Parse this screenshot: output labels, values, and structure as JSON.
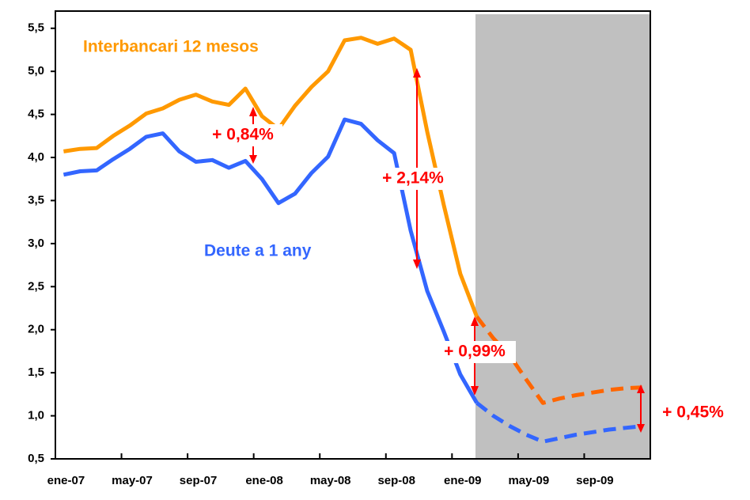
{
  "chart_data": {
    "type": "line",
    "categories": [
      "ene-07",
      null,
      null,
      null,
      "may-07",
      null,
      null,
      null,
      "sep-07",
      null,
      null,
      null,
      "ene-08",
      null,
      null,
      null,
      "may-08",
      null,
      null,
      null,
      "sep-08",
      null,
      null,
      null,
      "ene-09",
      null,
      null,
      null,
      "may-09",
      null,
      null,
      null,
      "sep-09",
      null,
      null,
      null
    ],
    "series": [
      {
        "name": "Interbancari 12 mesos",
        "color": "#ff9900",
        "dashed": false,
        "values": [
          4.07,
          4.1,
          4.11,
          4.25,
          4.37,
          4.51,
          4.57,
          4.67,
          4.73,
          4.65,
          4.61,
          4.8,
          4.48,
          4.33,
          4.6,
          4.82,
          5.0,
          5.36,
          5.39,
          5.32,
          5.38,
          5.25,
          4.3,
          3.45,
          2.65,
          2.15,
          null,
          null,
          null,
          null,
          null,
          null,
          null,
          null,
          null,
          null
        ]
      },
      {
        "name": "Deute a 1 any",
        "color": "#3366ff",
        "dashed": false,
        "values": [
          3.8,
          3.84,
          3.85,
          3.98,
          4.1,
          4.24,
          4.28,
          4.07,
          3.95,
          3.97,
          3.88,
          3.96,
          3.75,
          3.47,
          3.58,
          3.82,
          4.01,
          4.44,
          4.39,
          4.2,
          4.05,
          3.15,
          2.45,
          1.98,
          1.48,
          1.15,
          null,
          null,
          null,
          null,
          null,
          null,
          null,
          null,
          null,
          null
        ]
      },
      {
        "color": "#ff6600",
        "dashed": true,
        "values": [
          null,
          null,
          null,
          null,
          null,
          null,
          null,
          null,
          null,
          null,
          null,
          null,
          null,
          null,
          null,
          null,
          null,
          null,
          null,
          null,
          null,
          null,
          null,
          null,
          null,
          2.15,
          1.9,
          1.7,
          1.42,
          1.15,
          1.2,
          1.24,
          1.27,
          1.3,
          1.32,
          1.33
        ]
      },
      {
        "color": "#3366ff",
        "dashed": true,
        "values": [
          null,
          null,
          null,
          null,
          null,
          null,
          null,
          null,
          null,
          null,
          null,
          null,
          null,
          null,
          null,
          null,
          null,
          null,
          null,
          null,
          null,
          null,
          null,
          null,
          null,
          1.15,
          1.0,
          0.88,
          0.78,
          0.7,
          0.74,
          0.78,
          0.81,
          0.84,
          0.86,
          0.88
        ]
      }
    ],
    "ylim": [
      0.5,
      5.7
    ],
    "yticks": [
      {
        "value": 0.5,
        "label": "0,5"
      },
      {
        "value": 1.0,
        "label": "1,0"
      },
      {
        "value": 1.5,
        "label": "1,5"
      },
      {
        "value": 2.0,
        "label": "2,0"
      },
      {
        "value": 2.5,
        "label": "2,5"
      },
      {
        "value": 3.0,
        "label": "3,0"
      },
      {
        "value": 3.5,
        "label": "3,5"
      },
      {
        "value": 4.0,
        "label": "4,0"
      },
      {
        "value": 4.5,
        "label": "4,5"
      },
      {
        "value": 5.0,
        "label": "5,0"
      },
      {
        "value": 5.5,
        "label": "5,5"
      }
    ],
    "grid": false,
    "annotations": [
      "+ 0,84%",
      "+ 2,14%",
      "+ 0,99%",
      "+ 0,45%"
    ]
  }
}
